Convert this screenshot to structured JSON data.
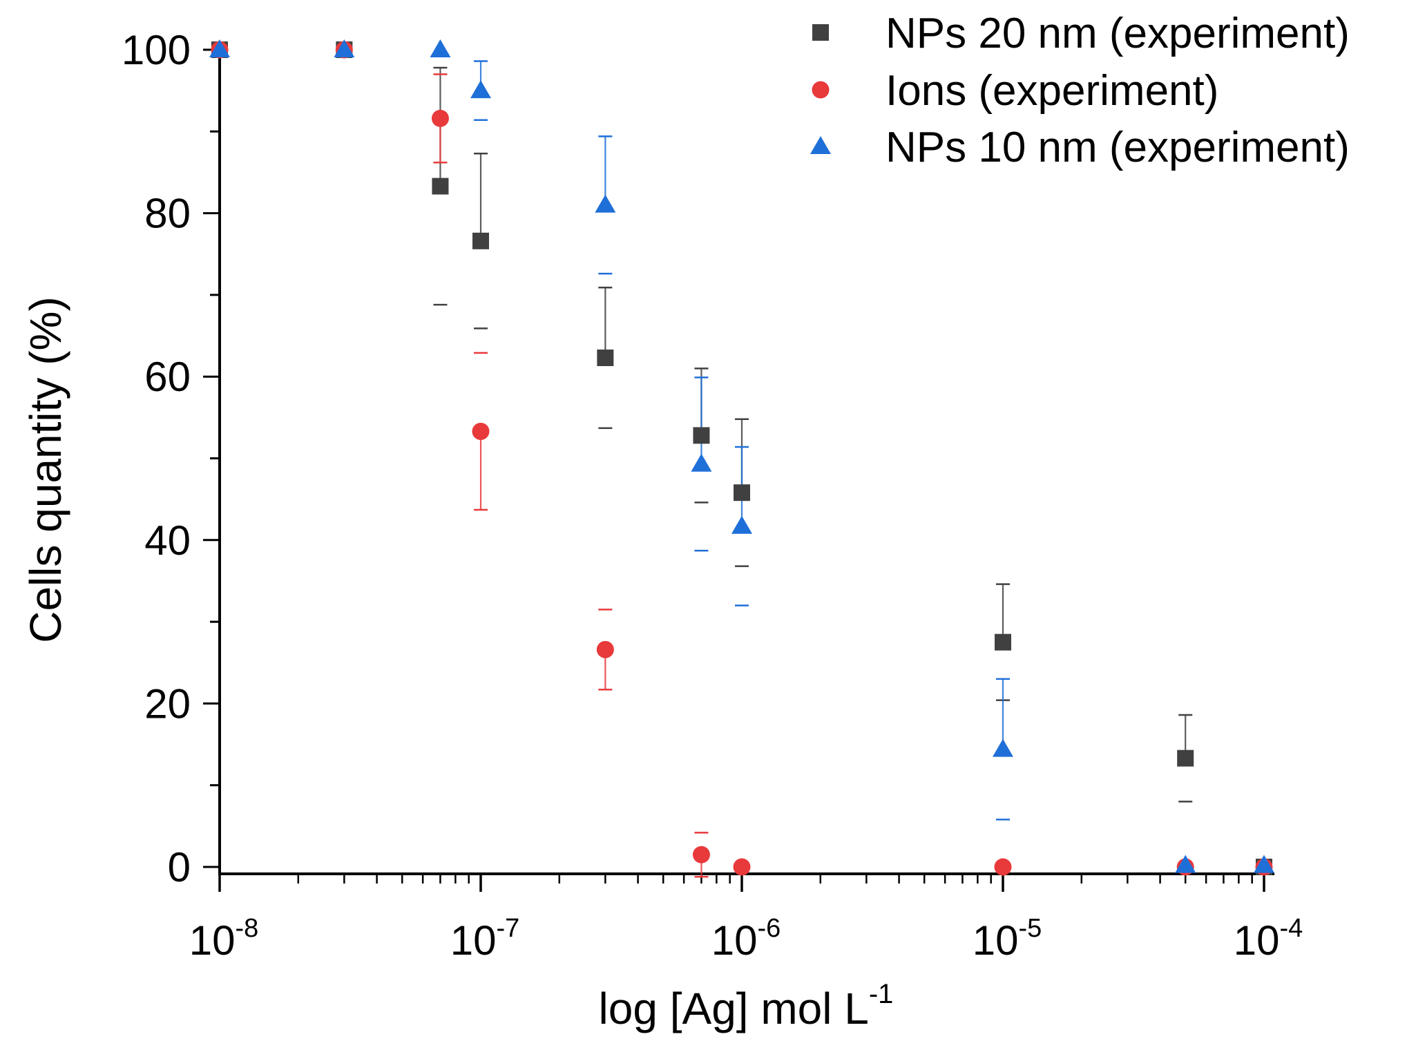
{
  "chart_data": {
    "type": "scatter",
    "x_scale": "log",
    "xlim": [
      1e-08,
      0.0001
    ],
    "ylim": [
      0,
      100
    ],
    "xlabel": "log [Ag] mol L",
    "xlabel_sup": "-1",
    "ylabel": "Cells quantity (%)",
    "y_ticks": [
      "0",
      "20",
      "40",
      "60",
      "80",
      "100"
    ],
    "x_ticks": [
      {
        "base": "10",
        "exp": "-8"
      },
      {
        "base": "10",
        "exp": "-7"
      },
      {
        "base": "10",
        "exp": "-6"
      },
      {
        "base": "10",
        "exp": "-5"
      },
      {
        "base": "10",
        "exp": "-4"
      }
    ],
    "legend_position": "top-right",
    "series": [
      {
        "name": "NPs 20 nm (experiment)",
        "marker": "square",
        "color": "#404040",
        "points": [
          {
            "x": 1e-08,
            "y": 100
          },
          {
            "x": 3e-08,
            "y": 100
          },
          {
            "x": 7e-08,
            "y": 83.3,
            "err": 14.5
          },
          {
            "x": 1e-07,
            "y": 76.6,
            "err": 10.7
          },
          {
            "x": 3e-07,
            "y": 62.3,
            "err": 8.6
          },
          {
            "x": 7e-07,
            "y": 52.8,
            "err": 8.2
          },
          {
            "x": 1e-06,
            "y": 45.8,
            "err": 9.0
          },
          {
            "x": 1e-05,
            "y": 27.5,
            "err": 7.1
          },
          {
            "x": 5e-05,
            "y": 13.3,
            "err": 5.3
          },
          {
            "x": 0.0001,
            "y": 0
          }
        ]
      },
      {
        "name": "Ions (experiment)",
        "marker": "circle",
        "color": "#e8393b",
        "points": [
          {
            "x": 1e-08,
            "y": 100
          },
          {
            "x": 3e-08,
            "y": 100
          },
          {
            "x": 7e-08,
            "y": 91.6,
            "err": 5.4
          },
          {
            "x": 1e-07,
            "y": 53.3,
            "err": 9.6
          },
          {
            "x": 3e-07,
            "y": 26.6,
            "err": 4.9
          },
          {
            "x": 7e-07,
            "y": 1.5,
            "err": 2.7
          },
          {
            "x": 1e-06,
            "y": 0
          },
          {
            "x": 1e-05,
            "y": 0
          },
          {
            "x": 5e-05,
            "y": 0
          },
          {
            "x": 0.0001,
            "y": 0
          }
        ]
      },
      {
        "name": "NPs 10 nm (experiment)",
        "marker": "triangle",
        "color": "#1f6fd8",
        "points": [
          {
            "x": 1e-08,
            "y": 100
          },
          {
            "x": 3e-08,
            "y": 100
          },
          {
            "x": 7e-08,
            "y": 100
          },
          {
            "x": 1e-07,
            "y": 95.0,
            "err": 3.6
          },
          {
            "x": 3e-07,
            "y": 81.0,
            "err": 8.4
          },
          {
            "x": 7e-07,
            "y": 49.3,
            "err": 10.6
          },
          {
            "x": 1e-06,
            "y": 41.7,
            "err": 9.7
          },
          {
            "x": 1e-05,
            "y": 14.4,
            "err": 8.6
          },
          {
            "x": 5e-05,
            "y": 0.2
          },
          {
            "x": 0.0001,
            "y": 0.2
          }
        ]
      }
    ]
  }
}
